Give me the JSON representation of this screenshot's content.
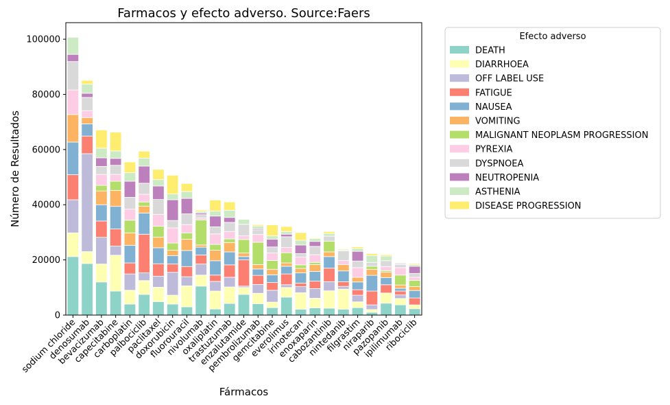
{
  "chart_data": {
    "type": "bar",
    "stacked": true,
    "title": "Farmacos y efecto adverso. Source:Faers",
    "xlabel": "Fármacos",
    "ylabel": "Número de Resultados",
    "ylim": [
      0,
      106000
    ],
    "yticks": [
      0,
      20000,
      40000,
      60000,
      80000,
      100000
    ],
    "grid": false,
    "legend": {
      "title": "Efecto adverso",
      "placement": "outside-right"
    },
    "categories": [
      "sodium chloride",
      "denosumab",
      "bevacizumab",
      "capecitabine",
      "carboplatin",
      "palbociclib",
      "paclitaxel",
      "doxorubicin",
      "fluorouracil",
      "nivolumab",
      "oxaliplatin",
      "trastuzumab",
      "enzalutamide",
      "pembrolizumab",
      "gemcitabine",
      "everolimus",
      "irinotecan",
      "enoxaparin",
      "cabozantinib",
      "nintedanib",
      "filgrastim",
      "niraparib",
      "pazopanib",
      "ipilimumab",
      "ribociclib"
    ],
    "series": [
      {
        "name": "DEATH",
        "color": "#8dd3c7",
        "values": [
          21200,
          18700,
          12000,
          8700,
          4000,
          7500,
          4900,
          4000,
          3000,
          10500,
          2200,
          4200,
          7500,
          4100,
          2700,
          6500,
          2100,
          2600,
          2500,
          2100,
          2700,
          1000,
          4300,
          3700,
          2300
        ]
      },
      {
        "name": "DIARRHOEA",
        "color": "#ffffb3",
        "values": [
          8600,
          4300,
          6500,
          13000,
          5000,
          5000,
          5200,
          3200,
          7600,
          4000,
          6500,
          6000,
          2500,
          3800,
          2000,
          3500,
          6000,
          3500,
          6300,
          7300,
          2100,
          1000,
          3700,
          2300,
          1400
        ]
      },
      {
        "name": "OFF LABEL USE",
        "color": "#bebada",
        "values": [
          12000,
          35500,
          9700,
          3300,
          5900,
          2800,
          4000,
          8300,
          3300,
          4000,
          3500,
          3500,
          500,
          3200,
          4300,
          1000,
          2200,
          3500,
          3300,
          1000,
          2400,
          1700,
          0,
          1300,
          0
        ]
      },
      {
        "name": "FATIGUE",
        "color": "#fb8072",
        "values": [
          9100,
          6400,
          5900,
          6200,
          4000,
          14000,
          4500,
          3000,
          3700,
          3300,
          2300,
          4500,
          9500,
          3300,
          2800,
          3900,
          1300,
          2700,
          4900,
          1700,
          2000,
          5000,
          3000,
          1400,
          2500
        ]
      },
      {
        "name": "NAUSEA",
        "color": "#80b1d3",
        "values": [
          11800,
          4400,
          5900,
          8200,
          6400,
          7700,
          5800,
          3000,
          5800,
          2800,
          5200,
          4700,
          1200,
          2300,
          2800,
          2800,
          3700,
          3500,
          4200,
          3900,
          2800,
          5700,
          2600,
          1000,
          2700
        ]
      },
      {
        "name": "VOMITING",
        "color": "#fdb462",
        "values": [
          10000,
          2300,
          5000,
          5800,
          4500,
          2500,
          3800,
          2000,
          4100,
          800,
          3800,
          3400,
          1300,
          1600,
          2000,
          1200,
          1600,
          2500,
          1700,
          2300,
          1700,
          2200,
          2000,
          1200,
          1400
        ]
      },
      {
        "name": "MALIGNANT NEOPLASM PROGRESSION",
        "color": "#b3de69",
        "values": [
          0,
          0,
          2000,
          3300,
          4600,
          1500,
          4000,
          2600,
          2300,
          9100,
          2100,
          1300,
          4900,
          8100,
          3200,
          3700,
          1300,
          800,
          3900,
          0,
          0,
          1100,
          500,
          3600,
          2300
        ]
      },
      {
        "name": "PYREXIA",
        "color": "#fccde5",
        "values": [
          8900,
          2500,
          4000,
          2500,
          4000,
          2800,
          4300,
          5500,
          3000,
          700,
          3800,
          2700,
          1300,
          2800,
          2700,
          1900,
          2800,
          2800,
          0,
          1500,
          3500,
          0,
          1500,
          2700,
          1100
        ]
      },
      {
        "name": "DYSPNOEA",
        "color": "#d9d9d9",
        "values": [
          10300,
          4800,
          2900,
          3300,
          4300,
          4000,
          5400,
          2700,
          3900,
          1200,
          2600,
          3300,
          4200,
          1700,
          2200,
          3900,
          1300,
          3000,
          1800,
          3500,
          2400,
          1400,
          2100,
          1100,
          1400
        ]
      },
      {
        "name": "NEUTROPENIA",
        "color": "#bc80bd",
        "values": [
          2600,
          1500,
          3100,
          2500,
          5800,
          6200,
          4900,
          7500,
          5600,
          600,
          3900,
          1800,
          0,
          400,
          2800,
          900,
          3100,
          1800,
          0,
          0,
          3500,
          0,
          0,
          300,
          2600
        ]
      },
      {
        "name": "ASTHENIA",
        "color": "#ccebc5",
        "values": [
          6200,
          3300,
          3500,
          2700,
          3100,
          2900,
          2300,
          2100,
          2500,
          600,
          1800,
          2600,
          1800,
          1000,
          1200,
          1000,
          1700,
          1000,
          1000,
          300,
          1000,
          2500,
          1700,
          300,
          600
        ]
      },
      {
        "name": "DISEASE PROGRESSION",
        "color": "#ffed6f",
        "values": [
          0,
          1400,
          6600,
          6800,
          3900,
          2500,
          3700,
          6800,
          2900,
          500,
          4000,
          3000,
          0,
          500,
          4000,
          1800,
          2800,
          300,
          700,
          300,
          600,
          700,
          500,
          0,
          400
        ]
      }
    ]
  }
}
